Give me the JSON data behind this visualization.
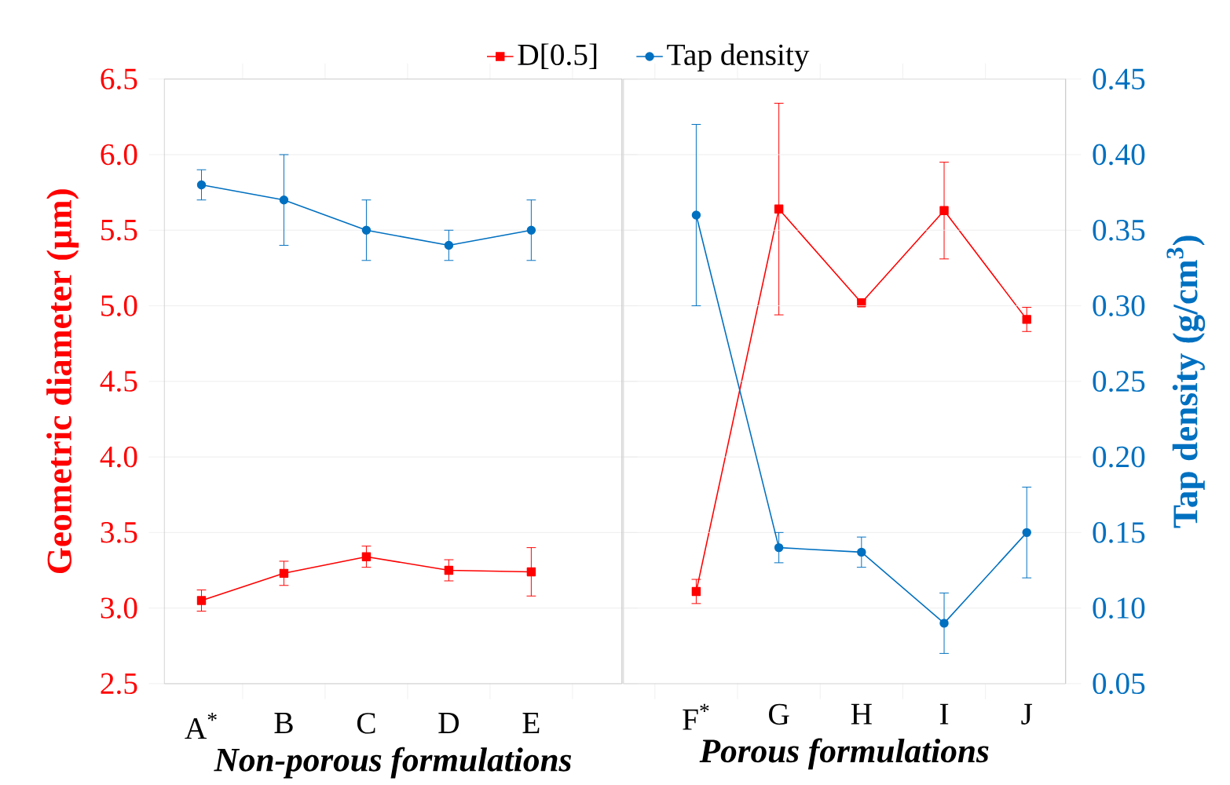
{
  "chart_data": [
    {
      "type": "line",
      "categories": [
        "A$^{*}$",
        "B",
        "C",
        "D",
        "E"
      ],
      "xlabel": "Non-porous formulations",
      "ylabel": "Geometric diameter (μm)",
      "ylim": [
        2.5,
        6.5
      ],
      "yticks": [
        2.5,
        {
          "value": 3,
          "label": "3.0"
        },
        3.5,
        {
          "value": 4,
          "label": "4.0"
        },
        4.5,
        {
          "value": 5,
          "label": "5.0"
        },
        5.5,
        {
          "value": 6,
          "label": "6.0"
        },
        6.5
      ],
      "y2lim": [
        0.05,
        0.45
      ],
      "grid": "y",
      "legend": "top",
      "series": [
        {
          "name": "D[0.5]",
          "color": "#ff0000",
          "marker": "square",
          "values": [
            3.05,
            3.23,
            3.34,
            3.25,
            3.24
          ],
          "errors": [
            0.07,
            0.08,
            0.07,
            0.07,
            0.16
          ]
        },
        {
          "name": "Tap density",
          "color": "#0070c0",
          "marker": "circle",
          "axis": "y2",
          "values": [
            0.38,
            0.37,
            0.35,
            0.34,
            0.35
          ],
          "errors": [
            0.01,
            0.03,
            0.02,
            0.01,
            0.02
          ]
        }
      ]
    },
    {
      "type": "line",
      "categories": [
        "F$^{*}$",
        "G",
        "H",
        "I",
        "J"
      ],
      "xlabel": "Porous formulations",
      "y2label": "Tap density (g/cm$^{3}$)",
      "ylim": [
        2.5,
        6.5
      ],
      "y2lim": [
        0.05,
        0.45
      ],
      "y2ticks": [
        0.05,
        {
          "value": 0.1,
          "label": "0.10"
        },
        0.15,
        {
          "value": 0.2,
          "label": "0.20"
        },
        0.25,
        {
          "value": 0.3,
          "label": "0.30"
        },
        0.35,
        {
          "value": 0.4,
          "label": "0.40"
        },
        0.45
      ],
      "grid": "y",
      "series": [
        {
          "color": "#ff0000",
          "marker": "square",
          "values": [
            3.11,
            5.64,
            5.02,
            5.63,
            4.91
          ],
          "errors": [
            0.08,
            0.7,
            0.02,
            0.32,
            0.08
          ]
        },
        {
          "color": "#0070c0",
          "marker": "circle",
          "axis": "y2",
          "values": [
            0.36,
            0.14,
            0.137,
            0.09,
            0.15
          ],
          "errors": [
            0.06,
            0.01,
            0.01,
            0.02,
            0.03
          ]
        }
      ]
    }
  ]
}
